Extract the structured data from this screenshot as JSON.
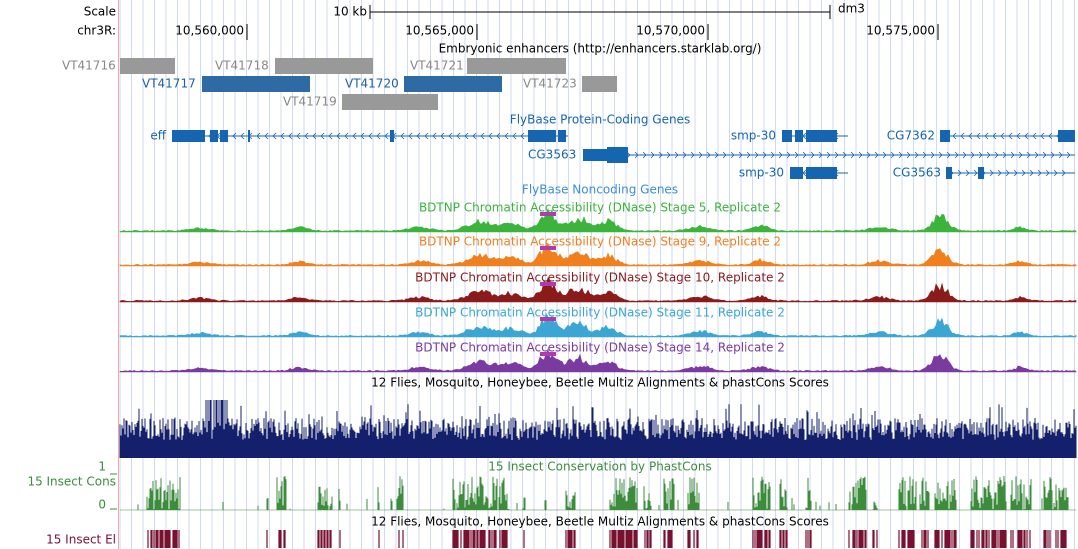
{
  "ruler": {
    "scale_label": "Scale",
    "chrom_label": "chr3R:",
    "scale_bar": "10 kb",
    "assembly": "dm3",
    "positions": [
      "10,560,000",
      "10,565,000",
      "10,570,000",
      "10,575,000"
    ]
  },
  "enhancers": {
    "title": "Embryonic enhancers (http://enhancers.starklab.org/)",
    "items": [
      "VT41716",
      "VT41718",
      "VT41721",
      "VT41717",
      "VT41720",
      "VT41723",
      "VT41719"
    ]
  },
  "genes": {
    "title": "FlyBase Protein-Coding Genes",
    "items": [
      "eff",
      "smp-30",
      "CG7362",
      "CG3563",
      "smp-30",
      "CG3563"
    ]
  },
  "noncoding": {
    "title": "FlyBase Noncoding Genes"
  },
  "dnase": [
    "BDTNP Chromatin Accessibility (DNase) Stage 5, Replicate 2",
    "BDTNP Chromatin Accessibility (DNase) Stage 9, Replicate 2",
    "BDTNP Chromatin Accessibility (DNase) Stage 10, Replicate 2",
    "BDTNP Chromatin Accessibility (DNase) Stage 11, Replicate 2",
    "BDTNP Chromatin Accessibility (DNase) Stage 14, Replicate 2"
  ],
  "multiz": {
    "title": "12 Flies, Mosquito, Honeybee, Beetle Multiz Alignments & phastCons Scores"
  },
  "phastcons": {
    "title": "15 Insect Conservation by PhastCons",
    "left_label": "15 Insect Cons",
    "max_label": "1",
    "min_label": "0"
  },
  "elements": {
    "title": "12 Flies, Mosquito, Honeybee, Beetle Multiz Alignments & phastCons Scores",
    "left_label": "15 Insect El"
  }
}
